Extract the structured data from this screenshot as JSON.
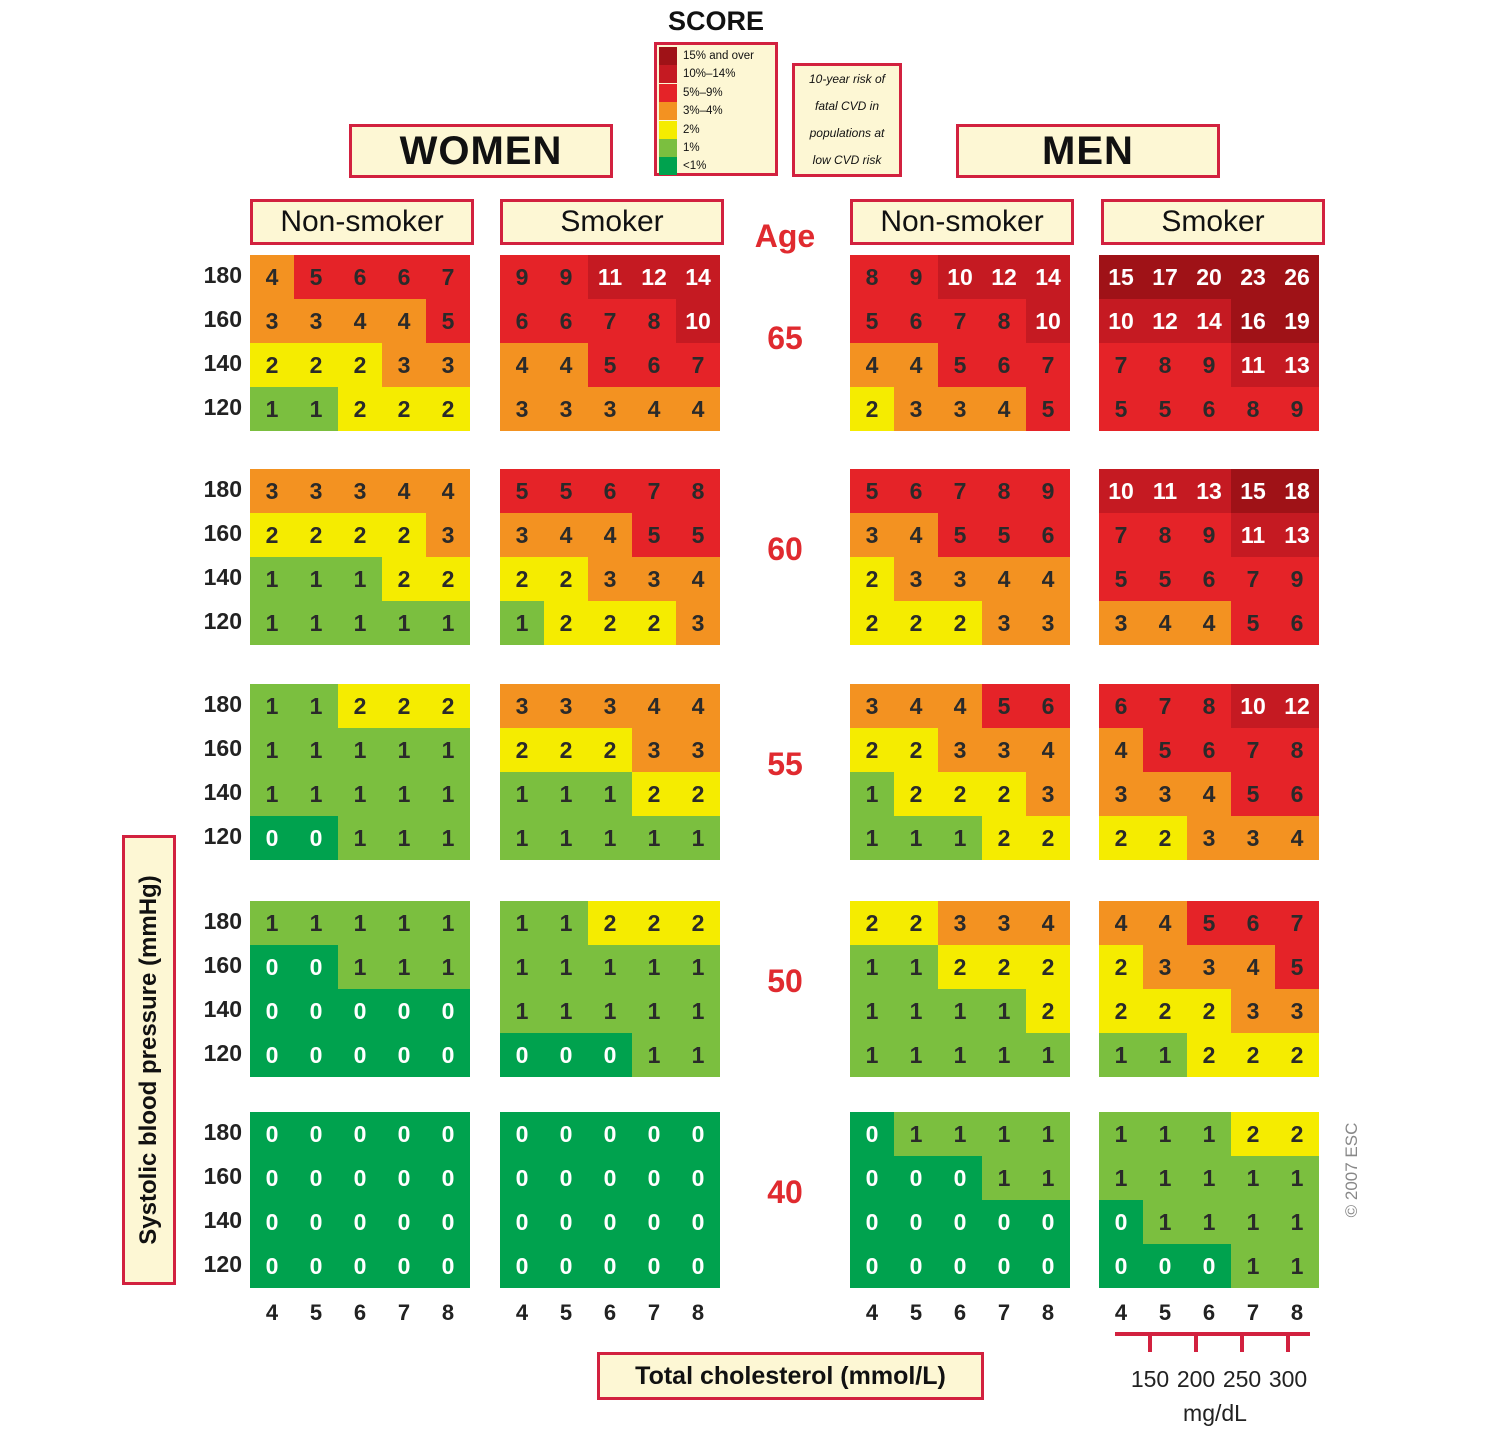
{
  "score_title": "SCORE",
  "legend": {
    "items": [
      {
        "label": "15% and over",
        "color": "#9f1217"
      },
      {
        "label": "10%–14%",
        "color": "#c51a22"
      },
      {
        "label": "5%–9%",
        "color": "#e52328"
      },
      {
        "label": "3%–4%",
        "color": "#f39221"
      },
      {
        "label": "2%",
        "color": "#f5ec00"
      },
      {
        "label": "1%",
        "color": "#7bbf3f"
      },
      {
        "label": "<1%",
        "color": "#00a24e"
      }
    ]
  },
  "note": "10-year risk of\nfatal CVD in\npopulations at\nlow CVD risk",
  "women_label": "WOMEN",
  "men_label": "MEN",
  "column_titles": [
    "Non-smoker",
    "Smoker",
    "Non-smoker",
    "Smoker"
  ],
  "age_title": "Age",
  "ylabel": "Systolic blood pressure (mmHg)",
  "xlabel": "Total cholesterol (mmol/L)",
  "copyright": "© 2007 ESC",
  "mgdl": {
    "values": [
      "150",
      "200",
      "250",
      "300"
    ],
    "unit": "mg/dL"
  },
  "chart_data": {
    "type": "heatmap",
    "title": "SCORE",
    "xlabel": "Total cholesterol (mmol/L)",
    "ylabel": "Systolic blood pressure (mmHg)",
    "x": [
      4,
      5,
      6,
      7,
      8
    ],
    "y": [
      180,
      160,
      140,
      120
    ],
    "ages": [
      65,
      60,
      55,
      50,
      40
    ],
    "panels": [
      {
        "sex": "WOMEN",
        "smoking": "Non-smoker",
        "grids": [
          [
            [
              4,
              5,
              6,
              6,
              7
            ],
            [
              3,
              3,
              4,
              4,
              5
            ],
            [
              2,
              2,
              2,
              3,
              3
            ],
            [
              1,
              1,
              2,
              2,
              2
            ]
          ],
          [
            [
              3,
              3,
              3,
              4,
              4
            ],
            [
              2,
              2,
              2,
              2,
              3
            ],
            [
              1,
              1,
              1,
              2,
              2
            ],
            [
              1,
              1,
              1,
              1,
              1
            ]
          ],
          [
            [
              1,
              1,
              2,
              2,
              2
            ],
            [
              1,
              1,
              1,
              1,
              1
            ],
            [
              1,
              1,
              1,
              1,
              1
            ],
            [
              0,
              0,
              1,
              1,
              1
            ]
          ],
          [
            [
              1,
              1,
              1,
              1,
              1
            ],
            [
              0,
              0,
              1,
              1,
              1
            ],
            [
              0,
              0,
              0,
              0,
              0
            ],
            [
              0,
              0,
              0,
              0,
              0
            ]
          ],
          [
            [
              0,
              0,
              0,
              0,
              0
            ],
            [
              0,
              0,
              0,
              0,
              0
            ],
            [
              0,
              0,
              0,
              0,
              0
            ],
            [
              0,
              0,
              0,
              0,
              0
            ]
          ]
        ]
      },
      {
        "sex": "WOMEN",
        "smoking": "Smoker",
        "grids": [
          [
            [
              9,
              9,
              11,
              12,
              14
            ],
            [
              6,
              6,
              7,
              8,
              10
            ],
            [
              4,
              4,
              5,
              6,
              7
            ],
            [
              3,
              3,
              3,
              4,
              4
            ]
          ],
          [
            [
              5,
              5,
              6,
              7,
              8
            ],
            [
              3,
              4,
              4,
              5,
              5
            ],
            [
              2,
              2,
              3,
              3,
              4
            ],
            [
              1,
              2,
              2,
              2,
              3
            ]
          ],
          [
            [
              3,
              3,
              3,
              4,
              4
            ],
            [
              2,
              2,
              2,
              3,
              3
            ],
            [
              1,
              1,
              1,
              2,
              2
            ],
            [
              1,
              1,
              1,
              1,
              1
            ]
          ],
          [
            [
              1,
              1,
              2,
              2,
              2
            ],
            [
              1,
              1,
              1,
              1,
              1
            ],
            [
              1,
              1,
              1,
              1,
              1
            ],
            [
              0,
              0,
              0,
              1,
              1
            ]
          ],
          [
            [
              0,
              0,
              0,
              0,
              0
            ],
            [
              0,
              0,
              0,
              0,
              0
            ],
            [
              0,
              0,
              0,
              0,
              0
            ],
            [
              0,
              0,
              0,
              0,
              0
            ]
          ]
        ]
      },
      {
        "sex": "MEN",
        "smoking": "Non-smoker",
        "grids": [
          [
            [
              8,
              9,
              10,
              12,
              14
            ],
            [
              5,
              6,
              7,
              8,
              10
            ],
            [
              4,
              4,
              5,
              6,
              7
            ],
            [
              2,
              3,
              3,
              4,
              5
            ]
          ],
          [
            [
              5,
              6,
              7,
              8,
              9
            ],
            [
              3,
              4,
              5,
              5,
              6
            ],
            [
              2,
              3,
              3,
              4,
              4
            ],
            [
              2,
              2,
              2,
              3,
              3
            ]
          ],
          [
            [
              3,
              4,
              4,
              5,
              6
            ],
            [
              2,
              2,
              3,
              3,
              4
            ],
            [
              1,
              2,
              2,
              2,
              3
            ],
            [
              1,
              1,
              1,
              2,
              2
            ]
          ],
          [
            [
              2,
              2,
              3,
              3,
              4
            ],
            [
              1,
              1,
              2,
              2,
              2
            ],
            [
              1,
              1,
              1,
              1,
              2
            ],
            [
              1,
              1,
              1,
              1,
              1
            ]
          ],
          [
            [
              0,
              1,
              1,
              1,
              1
            ],
            [
              0,
              0,
              0,
              1,
              1
            ],
            [
              0,
              0,
              0,
              0,
              0
            ],
            [
              0,
              0,
              0,
              0,
              0
            ]
          ]
        ]
      },
      {
        "sex": "MEN",
        "smoking": "Smoker",
        "grids": [
          [
            [
              15,
              17,
              20,
              23,
              26
            ],
            [
              10,
              12,
              14,
              16,
              19
            ],
            [
              7,
              8,
              9,
              11,
              13
            ],
            [
              5,
              5,
              6,
              8,
              9
            ]
          ],
          [
            [
              10,
              11,
              13,
              15,
              18
            ],
            [
              7,
              8,
              9,
              11,
              13
            ],
            [
              5,
              5,
              6,
              7,
              9
            ],
            [
              3,
              4,
              4,
              5,
              6
            ]
          ],
          [
            [
              6,
              7,
              8,
              10,
              12
            ],
            [
              4,
              5,
              6,
              7,
              8
            ],
            [
              3,
              3,
              4,
              5,
              6
            ],
            [
              2,
              2,
              3,
              3,
              4
            ]
          ],
          [
            [
              4,
              4,
              5,
              6,
              7
            ],
            [
              2,
              3,
              3,
              4,
              5
            ],
            [
              2,
              2,
              2,
              3,
              3
            ],
            [
              1,
              1,
              2,
              2,
              2
            ]
          ],
          [
            [
              1,
              1,
              1,
              2,
              2
            ],
            [
              1,
              1,
              1,
              1,
              1
            ],
            [
              0,
              1,
              1,
              1,
              1
            ],
            [
              0,
              0,
              0,
              1,
              1
            ]
          ]
        ]
      }
    ]
  }
}
